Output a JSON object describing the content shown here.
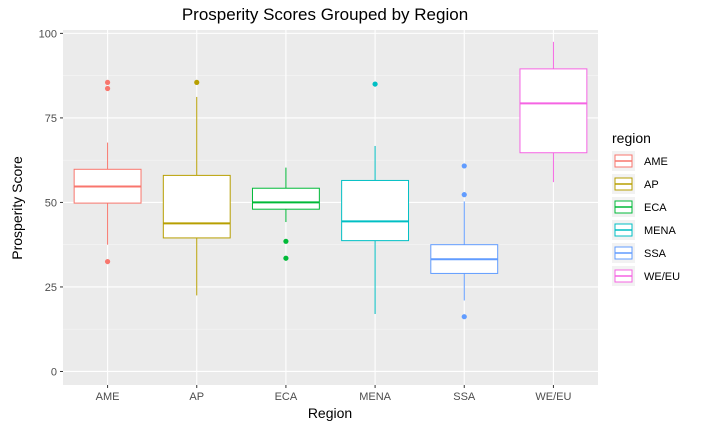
{
  "chart_data": {
    "type": "boxplot",
    "title": "Prosperity Scores Grouped by Region",
    "xlabel": "Region",
    "ylabel": "Prosperity Score",
    "ylim": [
      -4,
      101
    ],
    "yticks": [
      0,
      25,
      50,
      75,
      100
    ],
    "grid": true,
    "legend": {
      "title": "region",
      "placement": "right"
    },
    "categories": [
      "AME",
      "AP",
      "ECA",
      "MENA",
      "SSA",
      "WE/EU"
    ],
    "series": [
      {
        "name": "AME",
        "color": "#F8766D",
        "whisker_low": 37.5,
        "q1": 49.8,
        "median": 54.7,
        "q3": 59.8,
        "whisker_high": 67.7,
        "outliers": [
          85.5,
          83.7,
          32.5
        ]
      },
      {
        "name": "AP",
        "color": "#B79F00",
        "whisker_low": 22.5,
        "q1": 39.5,
        "median": 43.8,
        "q3": 58.0,
        "whisker_high": 81.2,
        "outliers": [
          85.5
        ]
      },
      {
        "name": "ECA",
        "color": "#00BA38",
        "whisker_low": 44.2,
        "q1": 48.0,
        "median": 50.0,
        "q3": 54.2,
        "whisker_high": 60.3,
        "outliers": [
          38.5,
          33.5
        ]
      },
      {
        "name": "MENA",
        "color": "#00BFC4",
        "whisker_low": 17.0,
        "q1": 38.7,
        "median": 44.4,
        "q3": 56.5,
        "whisker_high": 66.7,
        "outliers": [
          85.0
        ]
      },
      {
        "name": "SSA",
        "color": "#619CFF",
        "whisker_low": 21.0,
        "q1": 29.0,
        "median": 33.2,
        "q3": 37.5,
        "whisker_high": 50.3,
        "outliers": [
          60.8,
          52.3,
          16.2
        ]
      },
      {
        "name": "WE/EU",
        "color": "#F564E3",
        "whisker_low": 56.0,
        "q1": 64.7,
        "median": 79.3,
        "q3": 89.5,
        "whisker_high": 97.5,
        "outliers": []
      }
    ]
  }
}
